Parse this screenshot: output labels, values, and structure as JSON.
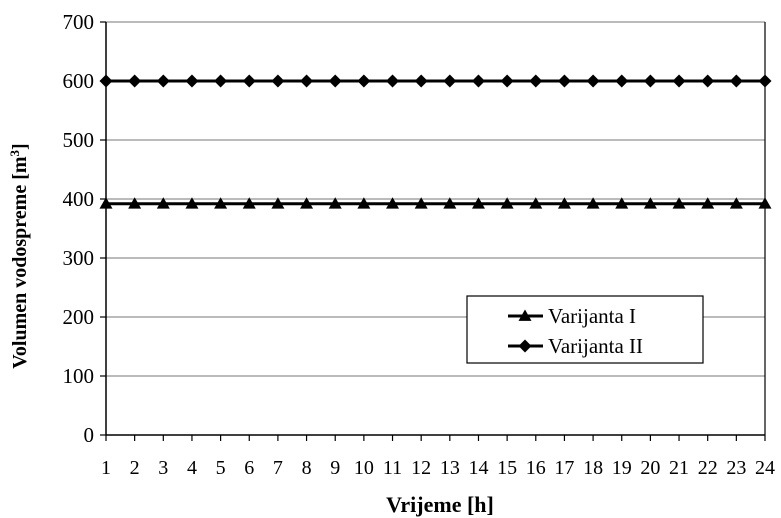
{
  "chart_data": {
    "type": "line",
    "title": "",
    "xlabel": "Vrijeme [h]",
    "ylabel": "Volumen vodospreme [m",
    "ylabel_sup": "3",
    "ylabel_end": "]",
    "x": [
      1,
      2,
      3,
      4,
      5,
      6,
      7,
      8,
      9,
      10,
      11,
      12,
      13,
      14,
      15,
      16,
      17,
      18,
      19,
      20,
      21,
      22,
      23,
      24
    ],
    "ylim": [
      0,
      700
    ],
    "yticks": [
      0,
      100,
      200,
      300,
      400,
      500,
      600,
      700
    ],
    "grid": true,
    "legend_position": "center-right",
    "series": [
      {
        "name": "Varijanta I",
        "marker": "triangle",
        "color": "#000000",
        "values": [
          392,
          392,
          392,
          392,
          392,
          392,
          392,
          392,
          392,
          392,
          392,
          392,
          392,
          392,
          392,
          392,
          392,
          392,
          392,
          392,
          392,
          392,
          392,
          392
        ]
      },
      {
        "name": "Varijanta II",
        "marker": "diamond",
        "color": "#000000",
        "values": [
          600,
          600,
          600,
          600,
          600,
          600,
          600,
          600,
          600,
          600,
          600,
          600,
          600,
          600,
          600,
          600,
          600,
          600,
          600,
          600,
          600,
          600,
          600,
          600
        ]
      }
    ]
  }
}
